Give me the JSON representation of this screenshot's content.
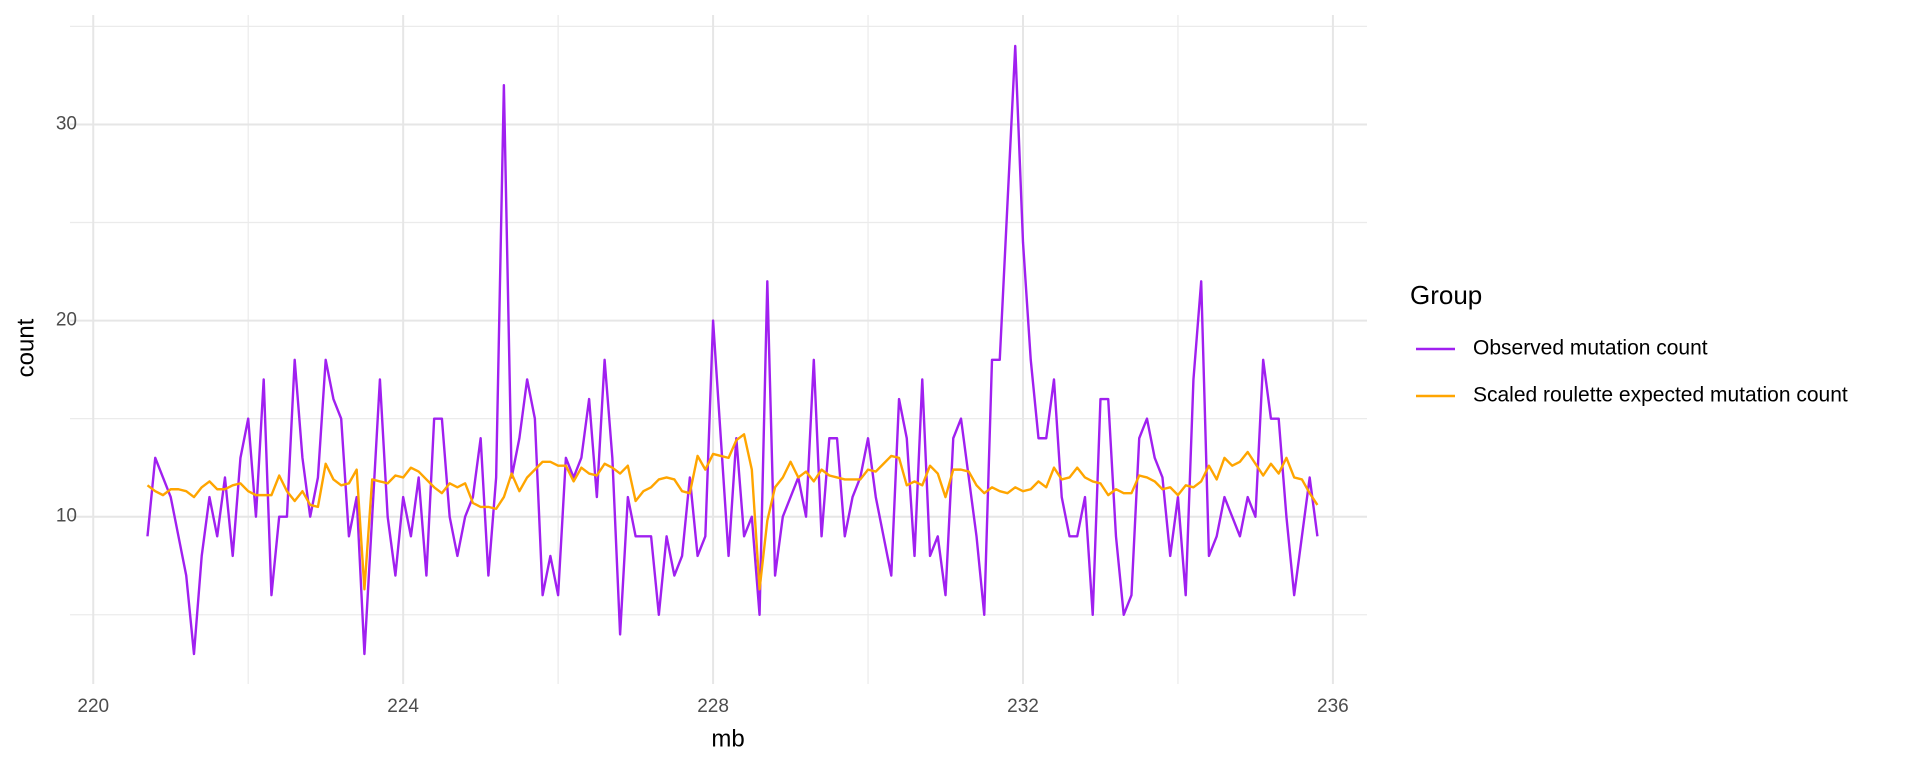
{
  "chart_data": {
    "type": "line",
    "xlabel": "mb",
    "ylabel": "count",
    "legend_title": "Group",
    "xlim": [
      219.7,
      236.44
    ],
    "ylim": [
      1.47,
      35.58
    ],
    "xticks": [
      220,
      224,
      228,
      232,
      236
    ],
    "yticks": [
      10,
      20,
      30
    ],
    "grid": true,
    "legend": "right",
    "x": [
      220.7,
      220.8,
      220.9,
      221.0,
      221.1,
      221.2,
      221.3,
      221.4,
      221.5,
      221.6,
      221.7,
      221.8,
      221.9,
      222.0,
      222.1,
      222.2,
      222.3,
      222.4,
      222.5,
      222.6,
      222.7,
      222.8,
      222.9,
      223.0,
      223.1,
      223.2,
      223.3,
      223.4,
      223.5,
      223.6,
      223.7,
      223.8,
      223.9,
      224.0,
      224.1,
      224.2,
      224.3,
      224.4,
      224.5,
      224.6,
      224.7,
      224.8,
      224.9,
      225.0,
      225.1,
      225.2,
      225.3,
      225.4,
      225.5,
      225.6,
      225.7,
      225.8,
      225.9,
      226.0,
      226.1,
      226.2,
      226.3,
      226.4,
      226.5,
      226.6,
      226.7,
      226.8,
      226.9,
      227.0,
      227.1,
      227.2,
      227.3,
      227.4,
      227.5,
      227.6,
      227.7,
      227.8,
      227.9,
      228.0,
      228.1,
      228.2,
      228.3,
      228.4,
      228.5,
      228.6,
      228.7,
      228.8,
      228.9,
      229.0,
      229.1,
      229.2,
      229.3,
      229.4,
      229.5,
      229.6,
      229.7,
      229.8,
      229.9,
      230.0,
      230.1,
      230.2,
      230.3,
      230.4,
      230.5,
      230.6,
      230.7,
      230.8,
      230.9,
      231.0,
      231.1,
      231.2,
      231.3,
      231.4,
      231.5,
      231.6,
      231.7,
      231.8,
      231.9,
      232.0,
      232.1,
      232.2,
      232.3,
      232.4,
      232.5,
      232.6,
      232.7,
      232.8,
      232.9,
      233.0,
      233.1,
      233.2,
      233.3,
      233.4,
      233.5,
      233.6,
      233.7,
      233.8,
      233.9,
      234.0,
      234.1,
      234.2,
      234.3,
      234.4,
      234.5,
      234.6,
      234.7,
      234.8,
      234.9,
      235.0,
      235.1,
      235.2,
      235.3,
      235.4,
      235.5,
      235.6,
      235.7,
      235.8
    ],
    "series": [
      {
        "name": "Observed mutation count",
        "color": "#a020f0",
        "values": [
          9,
          13,
          12,
          11,
          9,
          7,
          3,
          8,
          11,
          9,
          12,
          8,
          13,
          15,
          10,
          17,
          6,
          10,
          10,
          18,
          13,
          10,
          12,
          18,
          16,
          15,
          9,
          11,
          3,
          10,
          17,
          10,
          7,
          11,
          9,
          12,
          7,
          15,
          15,
          10,
          8,
          10,
          11,
          14,
          7,
          12,
          32,
          12,
          14,
          17,
          15,
          6,
          8,
          6,
          13,
          12,
          13,
          16,
          11,
          18,
          13,
          4,
          11,
          9,
          9,
          9,
          5,
          9,
          7,
          8,
          12,
          8,
          9,
          20,
          14,
          8,
          14,
          9,
          10,
          5,
          22,
          7,
          10,
          11,
          12,
          10,
          18,
          9,
          14,
          14,
          9,
          11,
          12,
          14,
          11,
          9,
          7,
          16,
          14,
          8,
          17,
          8,
          9,
          6,
          14,
          15,
          12,
          9,
          5,
          18,
          18,
          26,
          34,
          24,
          18,
          14,
          14,
          17,
          11,
          9,
          9,
          11,
          5,
          16,
          16,
          9,
          5,
          6,
          14,
          15,
          13,
          12,
          8,
          11,
          6,
          17,
          22,
          8,
          9,
          11,
          10,
          9,
          11,
          10,
          18,
          15,
          15,
          10,
          6,
          9,
          12,
          9
        ]
      },
      {
        "name": "Scaled roulette expected mutation count",
        "color": "#ffa500",
        "values": [
          11.6,
          11.3,
          11.1,
          11.4,
          11.4,
          11.3,
          11.0,
          11.5,
          11.8,
          11.4,
          11.4,
          11.6,
          11.7,
          11.3,
          11.1,
          11.1,
          11.1,
          12.1,
          11.3,
          10.8,
          11.3,
          10.6,
          10.5,
          12.7,
          11.9,
          11.6,
          11.7,
          12.4,
          6.3,
          11.9,
          11.8,
          11.7,
          12.1,
          12.0,
          12.5,
          12.3,
          11.9,
          11.5,
          11.2,
          11.7,
          11.5,
          11.7,
          10.7,
          10.5,
          10.5,
          10.4,
          11.0,
          12.2,
          11.3,
          12.0,
          12.4,
          12.8,
          12.8,
          12.6,
          12.6,
          11.8,
          12.5,
          12.2,
          12.1,
          12.7,
          12.5,
          12.2,
          12.6,
          10.8,
          11.3,
          11.5,
          11.9,
          12.0,
          11.9,
          11.3,
          11.2,
          13.1,
          12.4,
          13.2,
          13.1,
          13.0,
          13.9,
          14.2,
          12.4,
          6.3,
          9.8,
          11.5,
          12.0,
          12.8,
          12.0,
          12.3,
          11.8,
          12.4,
          12.1,
          12.0,
          11.9,
          11.9,
          11.9,
          12.4,
          12.3,
          12.7,
          13.1,
          13.0,
          11.6,
          11.8,
          11.6,
          12.6,
          12.2,
          11.0,
          12.4,
          12.4,
          12.3,
          11.6,
          11.2,
          11.5,
          11.3,
          11.2,
          11.5,
          11.3,
          11.4,
          11.8,
          11.5,
          12.5,
          11.9,
          12.0,
          12.5,
          12.0,
          11.8,
          11.7,
          11.1,
          11.4,
          11.2,
          11.2,
          12.1,
          12.0,
          11.8,
          11.4,
          11.5,
          11.1,
          11.6,
          11.5,
          11.8,
          12.6,
          11.9,
          13.0,
          12.6,
          12.8,
          13.3,
          12.7,
          12.1,
          12.7,
          12.2,
          13.0,
          12.0,
          11.9,
          11.2,
          10.6
        ]
      }
    ]
  }
}
